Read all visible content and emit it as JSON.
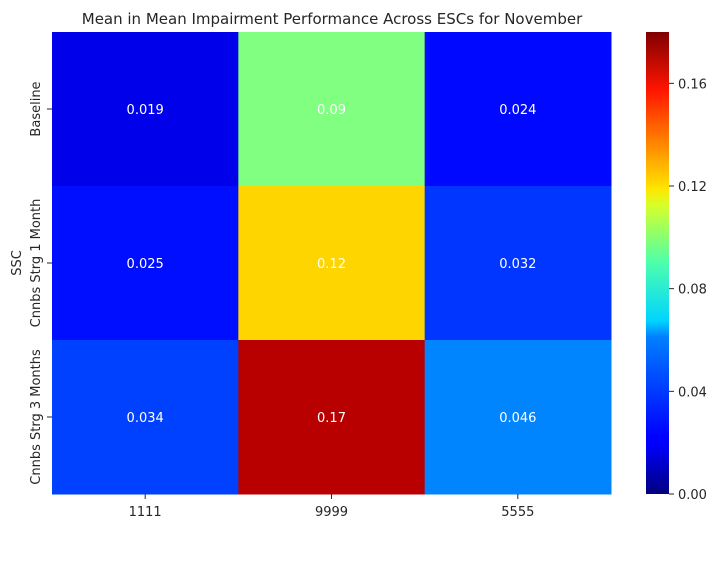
{
  "chart_data": {
    "type": "heatmap",
    "title": "Mean in Mean Impairment Performance Across ESCs for November",
    "xlabel": "",
    "ylabel": "SSC",
    "x_categories": [
      "1111",
      "9999",
      "5555"
    ],
    "y_categories": [
      "Baseline",
      "Cnnbs Strg 1 Month",
      "Cnnbs Strg 3 Months"
    ],
    "values": [
      [
        0.019,
        0.09,
        0.024
      ],
      [
        0.025,
        0.12,
        0.032
      ],
      [
        0.034,
        0.17,
        0.046
      ]
    ],
    "cell_labels": [
      [
        "0.019",
        "0.09",
        "0.024"
      ],
      [
        "0.025",
        "0.12",
        "0.032"
      ],
      [
        "0.034",
        "0.17",
        "0.046"
      ]
    ],
    "colormap": "jet",
    "vmin": 0.0,
    "vmax": 0.18,
    "colorbar_ticks": [
      "0.00",
      "0.04",
      "0.08",
      "0.12",
      "0.16"
    ],
    "annotation_color": "#ffffff"
  }
}
